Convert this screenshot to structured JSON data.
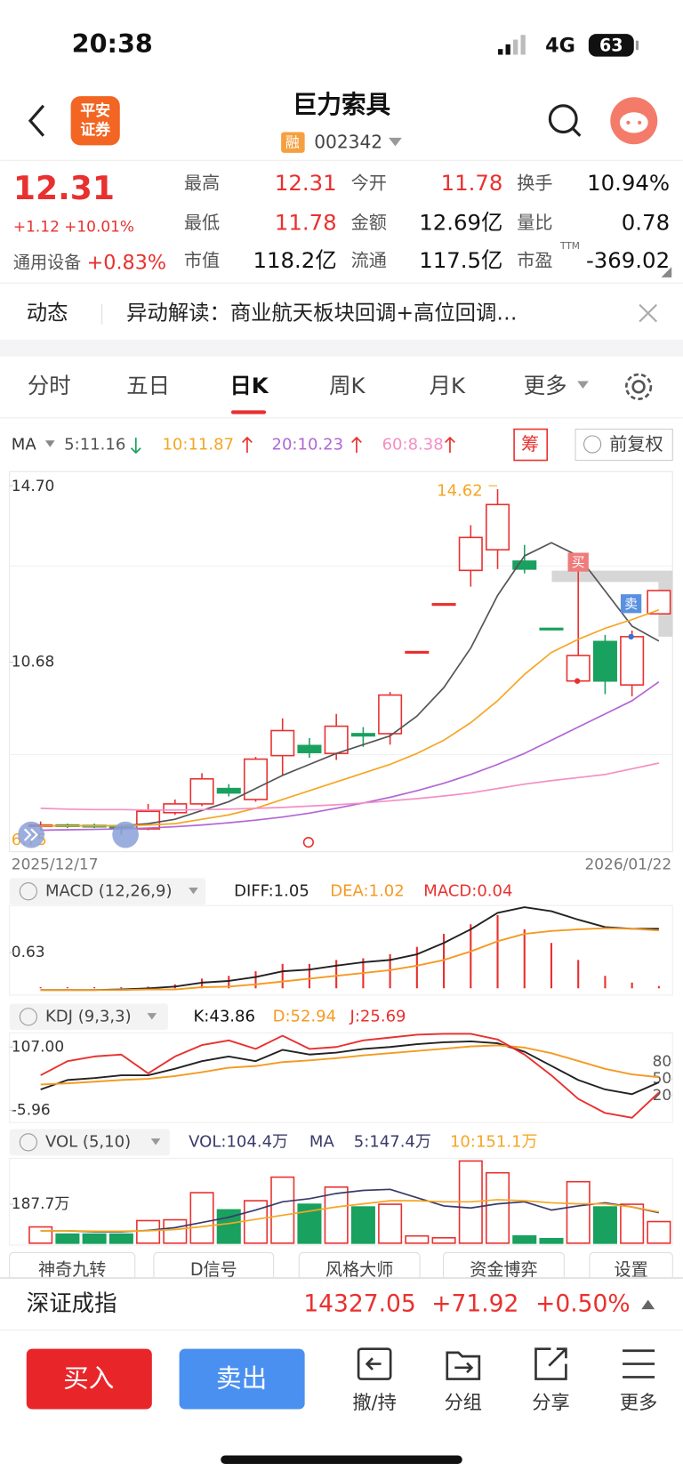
{
  "status_bar": {
    "time": "20:38",
    "network": "4G",
    "battery": "63"
  },
  "header": {
    "logo": [
      "平安",
      "证券"
    ],
    "title": "巨力索具",
    "badge": "融",
    "code": "002342"
  },
  "quote": {
    "price": "12.31",
    "change": "+1.12",
    "change_pct": "+10.01%",
    "sector": "通用设备",
    "sector_change": "+0.83%",
    "ttm": "TTM",
    "fields": [
      {
        "label": "最高",
        "value": "12.31"
      },
      {
        "label": "今开",
        "value": "11.78"
      },
      {
        "label": "换手",
        "value": "10.94%"
      },
      {
        "label": "最低",
        "value": "11.78"
      },
      {
        "label": "金额",
        "value": "12.69亿"
      },
      {
        "label": "量比",
        "value": "0.78"
      },
      {
        "label": "市值",
        "value": "118.2亿"
      },
      {
        "label": "流通",
        "value": "117.5亿"
      },
      {
        "label": "市盈",
        "value": "-369.02"
      }
    ]
  },
  "news": {
    "tag": "动态",
    "text": "异动解读：商业航天板块回调+高位回调…"
  },
  "tabs": [
    "分时",
    "五日",
    "日K",
    "周K",
    "月K",
    "更多"
  ],
  "kline": {
    "ma_label": "MA",
    "chip": "筹",
    "adjust": "前复权",
    "ylim": [
      6.36,
      15.02
    ],
    "yticks": [
      10.68,
      {
        "value": 14.7,
        "label": "14.70"
      }
    ],
    "max_label": "14.62",
    "min_label": "6.75",
    "start_date": "2025/12/17",
    "end_date": "2026/01/22",
    "buy": "买",
    "sell": "卖",
    "up_color": "#e8312f",
    "down_color": "#19a15f",
    "open": [
      6.95,
      6.97,
      6.96,
      6.95,
      6.88,
      7.25,
      7.45,
      7.8,
      7.55,
      8.55,
      8.78,
      8.6,
      9.05,
      9.05,
      10.9,
      12.0,
      12.77,
      13.24,
      12.98,
      11.45,
      10.25,
      11.15,
      10.16,
      11.78
    ],
    "close": [
      6.97,
      6.95,
      6.95,
      6.9,
      7.28,
      7.45,
      8.02,
      7.7,
      8.47,
      9.12,
      8.62,
      9.22,
      9.0,
      9.93,
      10.92,
      12.01,
      13.52,
      14.27,
      12.8,
      11.43,
      10.83,
      10.25,
      11.26,
      12.31
    ],
    "high": [
      7.05,
      7.0,
      7.0,
      6.98,
      7.45,
      7.55,
      8.15,
      7.9,
      8.52,
      9.4,
      8.95,
      9.5,
      9.2,
      10.0,
      10.92,
      12.01,
      13.8,
      14.62,
      13.35,
      11.45,
      12.98,
      11.3,
      11.4,
      12.31
    ],
    "low": [
      6.85,
      6.9,
      6.9,
      6.75,
      6.85,
      7.2,
      7.4,
      7.62,
      7.5,
      8.1,
      8.5,
      8.45,
      8.75,
      8.8,
      10.9,
      12.0,
      12.4,
      12.8,
      12.7,
      11.43,
      10.2,
      9.95,
      9.9,
      11.78
    ],
    "ma": [
      {
        "name": "5:11.16",
        "color": "#555555",
        "values": [
          6.95,
          6.95,
          6.95,
          6.95,
          7.0,
          7.1,
          7.3,
          7.5,
          7.8,
          8.1,
          8.35,
          8.6,
          8.8,
          9.0,
          9.45,
          10.1,
          11.0,
          12.2,
          13.1,
          13.4,
          13.1,
          12.3,
          11.5,
          11.16
        ]
      },
      {
        "name": "10:11.87",
        "color": "#f5a623",
        "values": [
          6.95,
          6.95,
          6.95,
          6.95,
          6.97,
          7.0,
          7.1,
          7.2,
          7.35,
          7.55,
          7.75,
          7.95,
          8.15,
          8.35,
          8.6,
          8.9,
          9.3,
          9.8,
          10.4,
          10.9,
          11.2,
          11.45,
          11.65,
          11.87
        ]
      },
      {
        "name": "20:10.23",
        "color": "#b266d6",
        "values": [
          6.85,
          6.86,
          6.87,
          6.88,
          6.9,
          6.93,
          6.97,
          7.02,
          7.08,
          7.15,
          7.24,
          7.35,
          7.47,
          7.6,
          7.75,
          7.92,
          8.12,
          8.35,
          8.6,
          8.9,
          9.2,
          9.5,
          9.8,
          10.23
        ]
      },
      {
        "name": "60:8.38",
        "color": "#f48fc4",
        "values": [
          7.35,
          7.33,
          7.32,
          7.32,
          7.31,
          7.31,
          7.32,
          7.33,
          7.35,
          7.37,
          7.4,
          7.43,
          7.47,
          7.52,
          7.57,
          7.63,
          7.7,
          7.8,
          7.9,
          7.98,
          8.05,
          8.12,
          8.25,
          8.38
        ]
      }
    ]
  },
  "macd": {
    "label": "MACD (12,26,9)",
    "ylim": [
      -0.12,
      1.46
    ],
    "yticks": [
      0.63
    ],
    "bars_name": "MACD:0.04",
    "bars": [
      0.02,
      0.02,
      0.02,
      0.02,
      0.03,
      0.07,
      0.17,
      0.22,
      0.3,
      0.43,
      0.43,
      0.5,
      0.53,
      0.6,
      0.73,
      0.96,
      1.13,
      1.29,
      1.04,
      0.8,
      0.5,
      0.22,
      0.1,
      0.04
    ],
    "lines": [
      {
        "name": "DIFF:1.05",
        "color": "#222222",
        "values": [
          -0.03,
          -0.03,
          -0.03,
          -0.02,
          0,
          0.03,
          0.1,
          0.13,
          0.2,
          0.3,
          0.33,
          0.4,
          0.46,
          0.5,
          0.6,
          0.8,
          1.04,
          1.33,
          1.43,
          1.36,
          1.21,
          1.08,
          1.05,
          1.05
        ]
      },
      {
        "name": "DEA:1.02",
        "color": "#f59a23",
        "values": [
          -0.03,
          -0.03,
          -0.03,
          -0.03,
          -0.02,
          -0.02,
          0.02,
          0.03,
          0.07,
          0.12,
          0.17,
          0.22,
          0.27,
          0.32,
          0.4,
          0.5,
          0.65,
          0.83,
          0.96,
          1.01,
          1.04,
          1.06,
          1.05,
          1.02
        ]
      }
    ]
  },
  "kdj": {
    "label": "KDJ (9,3,3)",
    "ylim": [
      -27.9,
      132.3
    ],
    "yticks": [
      {
        "value": -5.96,
        "label": "-5.96"
      },
      {
        "value": 107,
        "label": "107.00"
      }
    ],
    "yticks_right": [
      20,
      50,
      80
    ],
    "lines": [
      {
        "name": "K:43.86",
        "color": "#222222",
        "values": [
          31.1,
          48.0,
          51.4,
          56.4,
          56.4,
          68.2,
          81.7,
          90.1,
          81.7,
          101.9,
          93.5,
          96.9,
          103.6,
          107,
          112.1,
          115.4,
          117.1,
          113.7,
          98.6,
          73.3,
          48.0,
          31.1,
          22.7,
          43.86
        ]
      },
      {
        "name": "D:52.94",
        "color": "#f59a23",
        "values": [
          40,
          42,
          45,
          48,
          50,
          55,
          62,
          70,
          73,
          80,
          83,
          87,
          92,
          96,
          100,
          104,
          108,
          110,
          106,
          96,
          82,
          68,
          58,
          52.94
        ]
      },
      {
        "name": "J:25.69",
        "color": "#e8312f",
        "values": [
          56.4,
          81.7,
          90.1,
          93.5,
          59.8,
          90.1,
          110.4,
          118.8,
          103.6,
          127.2,
          103.6,
          107,
          118.8,
          123.9,
          128.9,
          130.6,
          130.6,
          120.5,
          93.5,
          56.4,
          14.3,
          -11.0,
          -19.5,
          25.69
        ]
      }
    ]
  },
  "vol": {
    "label": "VOL (5,10)",
    "name": "VOL:104.4万",
    "ma_label": "MA",
    "ylim": [
      0,
      410
    ],
    "yticks": [
      {
        "value": 187.7,
        "label": "187.7万"
      }
    ],
    "values": [
      78.6,
      43.7,
      43.7,
      43.7,
      109,
      113,
      244,
      161,
      205,
      319,
      188,
      271,
      175,
      188,
      35,
      26,
      397,
      340,
      35,
      22,
      297,
      175,
      188,
      104.4
    ],
    "ma": [
      {
        "name": "5:147.4万",
        "color": "#3a3a6a",
        "values": [
          60,
          60,
          55,
          55,
          62,
          75,
          100,
          125,
          160,
          200,
          215,
          240,
          255,
          260,
          220,
          180,
          170,
          190,
          200,
          160,
          180,
          195,
          175,
          147.4
        ]
      },
      {
        "name": "10:151.1万",
        "color": "#f5a623",
        "values": [
          60,
          60,
          58,
          58,
          60,
          66,
          80,
          95,
          115,
          135,
          155,
          175,
          190,
          205,
          205,
          200,
          200,
          210,
          205,
          195,
          190,
          190,
          175,
          151.1
        ]
      }
    ]
  },
  "tools": [
    "神奇九转",
    "D信号",
    "风格大师",
    "资金博弈",
    "设置"
  ],
  "index": {
    "name": "深证成指",
    "value": "14327.05",
    "change": "+71.92",
    "change_pct": "+0.50%"
  },
  "actions": {
    "buy": "买入",
    "sell": "卖出",
    "tools": [
      "撤/持",
      "分组",
      "分享",
      "更多"
    ]
  }
}
